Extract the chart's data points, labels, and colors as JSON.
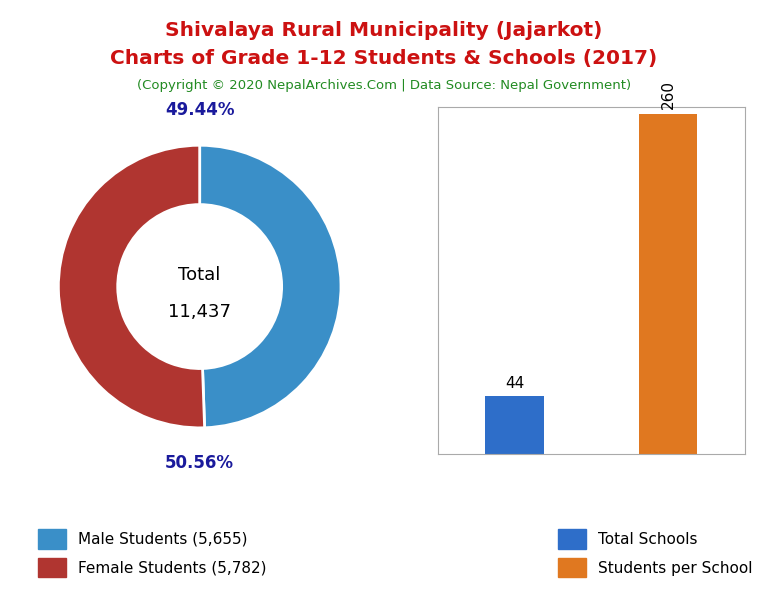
{
  "title_line1": "Shivalaya Rural Municipality (Jajarkot)",
  "title_line2": "Charts of Grade 1-12 Students & Schools (2017)",
  "subtitle": "(Copyright © 2020 NepalArchives.Com | Data Source: Nepal Government)",
  "title_color": "#cc1111",
  "subtitle_color": "#228B22",
  "male_students": 5655,
  "female_students": 5782,
  "total_students": 11437,
  "male_pct": "49.44%",
  "female_pct": "50.56%",
  "donut_colors": [
    "#3a8fc8",
    "#b03530"
  ],
  "pie_label_color": "#1a1a9c",
  "total_label_line1": "Total",
  "total_label_line2": "11,437",
  "legend_male": "Male Students (5,655)",
  "legend_female": "Female Students (5,782)",
  "bar_categories": [
    "Total Schools",
    "Students per School"
  ],
  "bar_values": [
    44,
    260
  ],
  "bar_colors": [
    "#2e6ec9",
    "#e07820"
  ],
  "bar_label_fontsize": 11,
  "background_color": "#ffffff"
}
